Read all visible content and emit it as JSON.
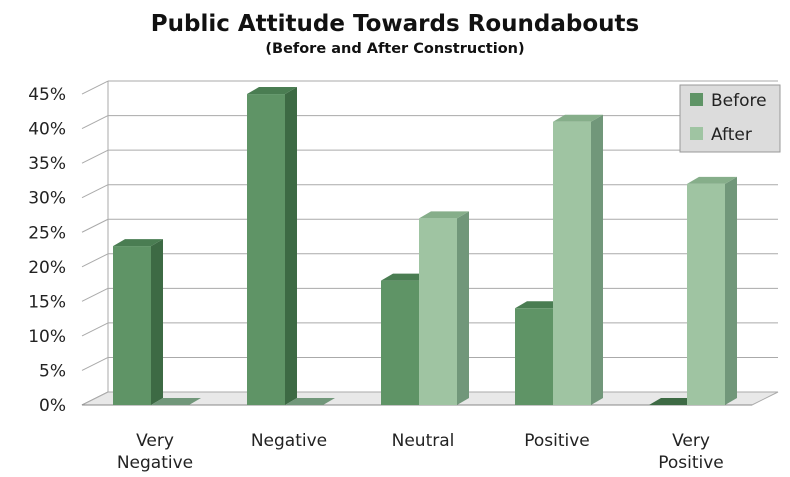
{
  "chart_data": {
    "type": "bar",
    "title": "Public Attitude Towards Roundabouts",
    "subtitle": "(Before and After Construction)",
    "categories": [
      [
        "Very",
        "Negative"
      ],
      [
        "Negative"
      ],
      [
        "Neutral"
      ],
      [
        "Positive"
      ],
      [
        "Very",
        "Positive"
      ]
    ],
    "series": [
      {
        "name": "Before",
        "values": [
          23,
          45,
          18,
          14,
          0
        ]
      },
      {
        "name": "After",
        "values": [
          0,
          0,
          27,
          41,
          32
        ]
      }
    ],
    "yticks": [
      "0%",
      "5%",
      "10%",
      "15%",
      "20%",
      "25%",
      "30%",
      "35%",
      "40%",
      "45%"
    ],
    "ylim": [
      0,
      45
    ],
    "grid": true,
    "legend_position": "top-right",
    "colors": {
      "before_front": "#5f9466",
      "before_side": "#3d6a44",
      "before_top": "#4a7d52",
      "after_front": "#9fc4a2",
      "after_side": "#71977a",
      "after_top": "#86ae8a"
    }
  }
}
